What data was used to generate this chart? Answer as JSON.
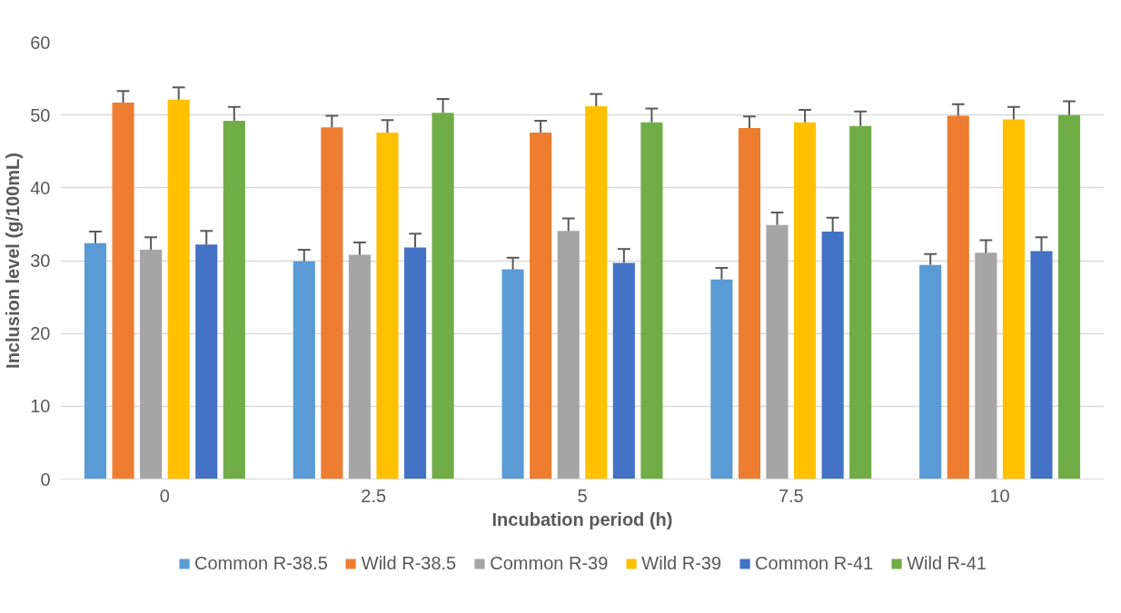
{
  "chart_data": {
    "type": "bar",
    "xlabel": "Incubation period (h)",
    "ylabel": "Inclusion level (g/100mL)",
    "categories": [
      "0",
      "2.5",
      "5",
      "7.5",
      "10"
    ],
    "ylim": [
      0,
      60
    ],
    "yticks": [
      0,
      10,
      20,
      30,
      40,
      50,
      60
    ],
    "grid": "y",
    "legend": "bottom",
    "series": [
      {
        "name": "Common R-38.5",
        "color": "#5b9bd5",
        "values": [
          32.4,
          29.9,
          28.8,
          27.4,
          29.4
        ],
        "errors": [
          [
            32.4,
            34.0
          ],
          [
            29.9,
            31.5
          ],
          [
            28.8,
            30.4
          ],
          [
            27.4,
            29.0
          ],
          [
            29.4,
            30.9
          ]
        ]
      },
      {
        "name": "Wild R-38.5",
        "color": "#ed7d31",
        "values": [
          51.7,
          48.3,
          47.6,
          48.2,
          49.9
        ],
        "errors": [
          [
            51.7,
            53.3
          ],
          [
            48.3,
            49.9
          ],
          [
            47.6,
            49.2
          ],
          [
            48.2,
            49.8
          ],
          [
            49.9,
            51.5
          ]
        ]
      },
      {
        "name": "Common R-39",
        "color": "#a5a5a5",
        "values": [
          31.5,
          30.8,
          34.1,
          34.9,
          31.1
        ],
        "errors": [
          [
            31.5,
            33.2
          ],
          [
            30.8,
            32.5
          ],
          [
            34.1,
            35.8
          ],
          [
            34.9,
            36.6
          ],
          [
            31.1,
            32.8
          ]
        ]
      },
      {
        "name": "Wild R-39",
        "color": "#ffc000",
        "values": [
          52.1,
          47.6,
          51.2,
          49.0,
          49.4
        ],
        "errors": [
          [
            52.1,
            53.8
          ],
          [
            47.6,
            49.3
          ],
          [
            51.2,
            52.9
          ],
          [
            49.0,
            50.7
          ],
          [
            49.4,
            51.1
          ]
        ]
      },
      {
        "name": "Common R-41",
        "color": "#4472c4",
        "values": [
          32.2,
          31.8,
          29.7,
          34.0,
          31.3
        ],
        "errors": [
          [
            32.2,
            34.1
          ],
          [
            31.8,
            33.7
          ],
          [
            29.7,
            31.6
          ],
          [
            34.0,
            35.9
          ],
          [
            31.3,
            33.2
          ]
        ]
      },
      {
        "name": "Wild R-41",
        "color": "#70ad47",
        "values": [
          49.2,
          50.3,
          49.0,
          48.5,
          50.0
        ],
        "errors": [
          [
            49.2,
            51.1
          ],
          [
            50.3,
            52.2
          ],
          [
            49.0,
            50.9
          ],
          [
            48.5,
            50.5
          ],
          [
            50.0,
            51.9
          ]
        ]
      }
    ]
  }
}
